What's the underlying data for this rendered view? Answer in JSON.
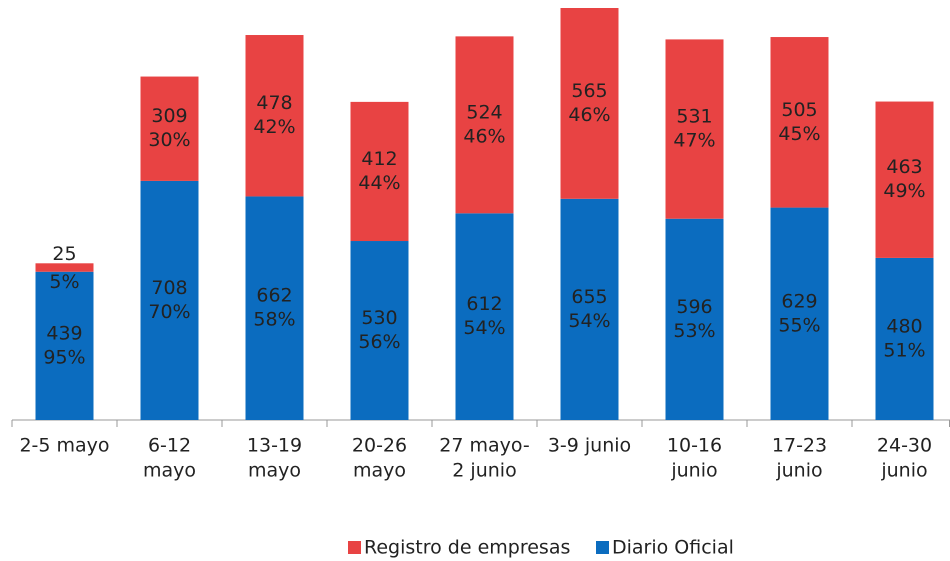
{
  "chart_data": {
    "type": "stacked_bar",
    "categories": [
      [
        "2-5 mayo"
      ],
      [
        "6-12",
        "mayo"
      ],
      [
        "13-19",
        "mayo"
      ],
      [
        "20-26",
        "mayo"
      ],
      [
        "27 mayo-",
        "2  junio"
      ],
      [
        "3-9 junio"
      ],
      [
        "10-16",
        "junio"
      ],
      [
        "17-23",
        "junio"
      ],
      [
        "24-30",
        "junio"
      ]
    ],
    "series": [
      {
        "name": "Registro de empresas",
        "color": "#e84343",
        "values": [
          25,
          309,
          478,
          412,
          524,
          565,
          531,
          505,
          463
        ],
        "share_labels": [
          "5%",
          "30%",
          "42%",
          "44%",
          "46%",
          "46%",
          "47%",
          "45%",
          "49%"
        ]
      },
      {
        "name": "Diario Oficial",
        "color": "#0b6cbf",
        "values": [
          439,
          708,
          662,
          530,
          612,
          655,
          596,
          629,
          480
        ],
        "share_labels": [
          "95%",
          "70%",
          "58%",
          "56%",
          "54%",
          "54%",
          "53%",
          "55%",
          "51%"
        ]
      }
    ],
    "ylim": [
      0,
      1220
    ],
    "legend": "bottom"
  }
}
